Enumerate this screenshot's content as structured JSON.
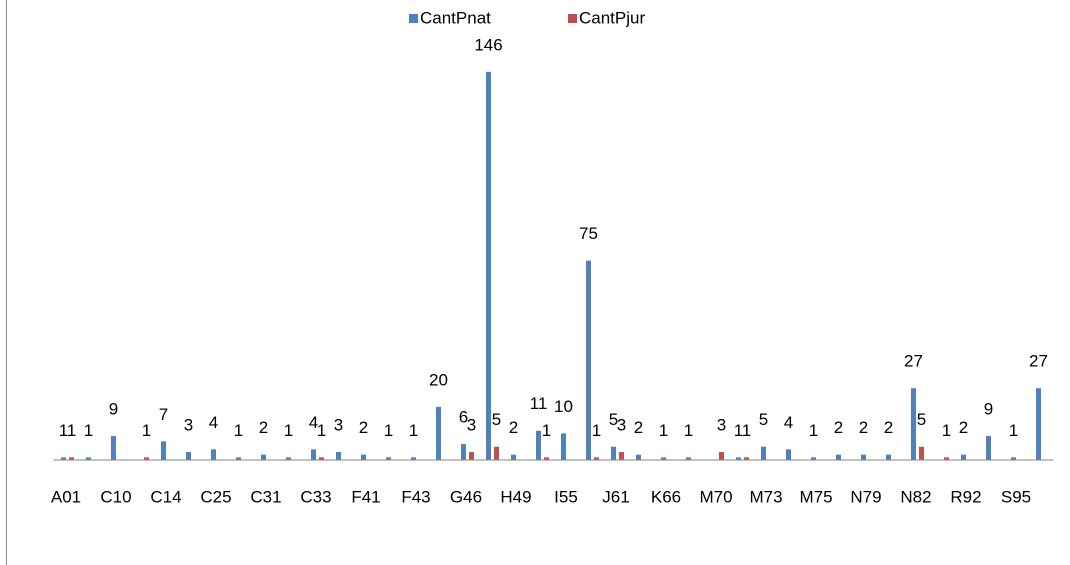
{
  "chart_data": {
    "type": "bar",
    "categories": [
      "A01",
      null,
      "C10",
      null,
      "C14",
      null,
      "C25",
      null,
      "C31",
      null,
      "C33",
      null,
      "F41",
      null,
      "F43",
      null,
      "G46",
      null,
      "H49",
      null,
      "I55",
      null,
      "J61",
      null,
      "K66",
      null,
      "M70",
      null,
      "M73",
      null,
      "M75",
      null,
      "N79",
      null,
      "N82",
      null,
      "R92",
      null,
      "S95",
      null
    ],
    "series": [
      {
        "name": "CantPnat",
        "color": "#4f81bd",
        "values": [
          1,
          1,
          9,
          null,
          7,
          3,
          4,
          1,
          2,
          1,
          4,
          3,
          2,
          1,
          1,
          20,
          6,
          146,
          2,
          11,
          10,
          75,
          5,
          2,
          1,
          1,
          null,
          1,
          5,
          4,
          1,
          2,
          2,
          2,
          27,
          null,
          2,
          9,
          1,
          27
        ]
      },
      {
        "name": "CantPjur",
        "color": "#c0504d",
        "values": [
          1,
          null,
          null,
          1,
          null,
          null,
          null,
          null,
          null,
          null,
          1,
          null,
          null,
          null,
          null,
          null,
          3,
          5,
          null,
          1,
          null,
          1,
          3,
          null,
          null,
          null,
          3,
          1,
          null,
          null,
          null,
          null,
          null,
          null,
          5,
          1,
          null,
          null,
          null,
          null
        ]
      }
    ],
    "ylim": [
      0,
      160
    ],
    "legend": "top"
  }
}
